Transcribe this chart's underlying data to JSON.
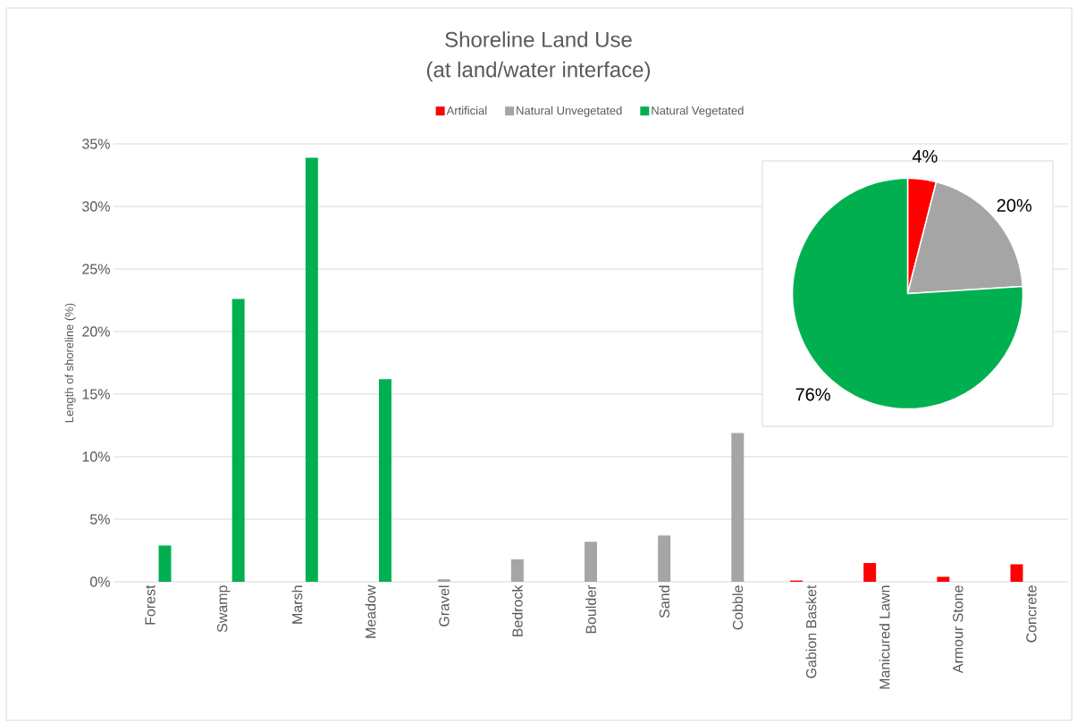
{
  "chart_data": [
    {
      "type": "bar",
      "title": "Shoreline Land Use",
      "subtitle": "(at land/water interface)",
      "ylabel": "Length of shoreline (%)",
      "categories": [
        "Forest",
        "Swamp",
        "Marsh",
        "Meadow",
        "Gravel",
        "Bedrock",
        "Boulder",
        "Sand",
        "Cobble",
        "Gabion Basket",
        "Manicured Lawn",
        "Armour Stone",
        "Concrete"
      ],
      "series": [
        {
          "name": "Artificial",
          "color": "#ff0000",
          "values": [
            null,
            null,
            null,
            null,
            null,
            null,
            null,
            null,
            null,
            0.1,
            1.5,
            0.4,
            1.4
          ]
        },
        {
          "name": "Natural Unvegetated",
          "color": "#a5a5a5",
          "values": [
            null,
            null,
            null,
            null,
            0.2,
            1.8,
            3.2,
            3.7,
            11.9,
            null,
            null,
            null,
            null
          ]
        },
        {
          "name": "Natural Vegetated",
          "color": "#00b050",
          "values": [
            2.9,
            22.6,
            33.9,
            16.2,
            null,
            null,
            null,
            null,
            null,
            null,
            null,
            null,
            null
          ]
        }
      ],
      "ylim": [
        0,
        35
      ],
      "yticks": [
        {
          "value": 0,
          "label": "0%"
        },
        {
          "value": 5,
          "label": "5%"
        },
        {
          "value": 10,
          "label": "10%"
        },
        {
          "value": 15,
          "label": "15%"
        },
        {
          "value": 20,
          "label": "20%"
        },
        {
          "value": 25,
          "label": "25%"
        },
        {
          "value": 30,
          "label": "30%"
        },
        {
          "value": 35,
          "label": "35%"
        }
      ],
      "grid": "y",
      "legend": "top"
    },
    {
      "type": "pie",
      "categories": [
        null,
        null,
        null
      ],
      "values": [
        4,
        20,
        76
      ],
      "colors": [
        "#ff0000",
        "#a5a5a5",
        "#00b050"
      ],
      "value_labels": [
        "4%",
        "20%",
        "76%"
      ]
    }
  ]
}
